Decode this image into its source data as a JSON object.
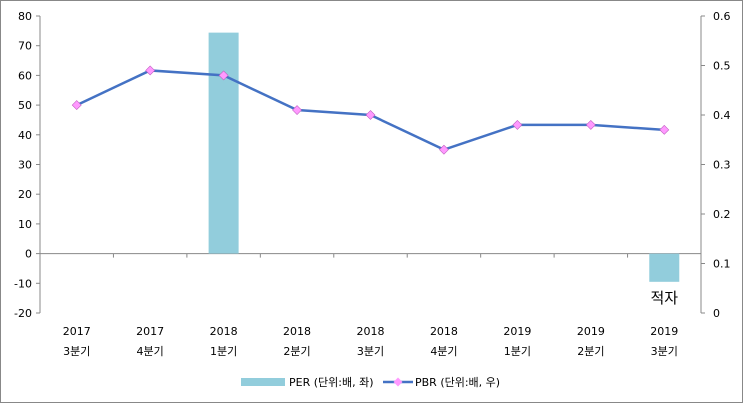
{
  "chart_data": {
    "type": "bar+line",
    "categories": [
      [
        "2017",
        "3분기"
      ],
      [
        "2017",
        "4분기"
      ],
      [
        "2018",
        "1분기"
      ],
      [
        "2018",
        "2분기"
      ],
      [
        "2018",
        "3분기"
      ],
      [
        "2018",
        "4분기"
      ],
      [
        "2019",
        "1분기"
      ],
      [
        "2019",
        "2분기"
      ],
      [
        "2019",
        "3분기"
      ]
    ],
    "series": [
      {
        "name": "PER (단위:배, 좌)",
        "type": "bar",
        "axis": "left",
        "color": "#92CDDC",
        "values": [
          null,
          null,
          74.4,
          null,
          null,
          null,
          null,
          null,
          -9.5
        ]
      },
      {
        "name": "PBR (단위:배, 우)",
        "type": "line",
        "axis": "right",
        "color": "#4472C4",
        "marker_color": "#FF99FF",
        "values": [
          0.42,
          0.49,
          0.48,
          0.41,
          0.4,
          0.33,
          0.38,
          0.38,
          0.37
        ]
      }
    ],
    "annotation": "적자",
    "y_left": {
      "min": -20,
      "max": 80,
      "step": 10,
      "ticks": [
        "-20",
        "-10",
        "0",
        "10",
        "20",
        "30",
        "40",
        "50",
        "60",
        "70",
        "80"
      ]
    },
    "y_right": {
      "min": 0,
      "max": 0.6,
      "step": 0.1,
      "ticks": [
        "0",
        "0.1",
        "0.2",
        "0.3",
        "0.4",
        "0.5",
        "0.6"
      ]
    },
    "legend_position": "bottom",
    "grid": false
  }
}
